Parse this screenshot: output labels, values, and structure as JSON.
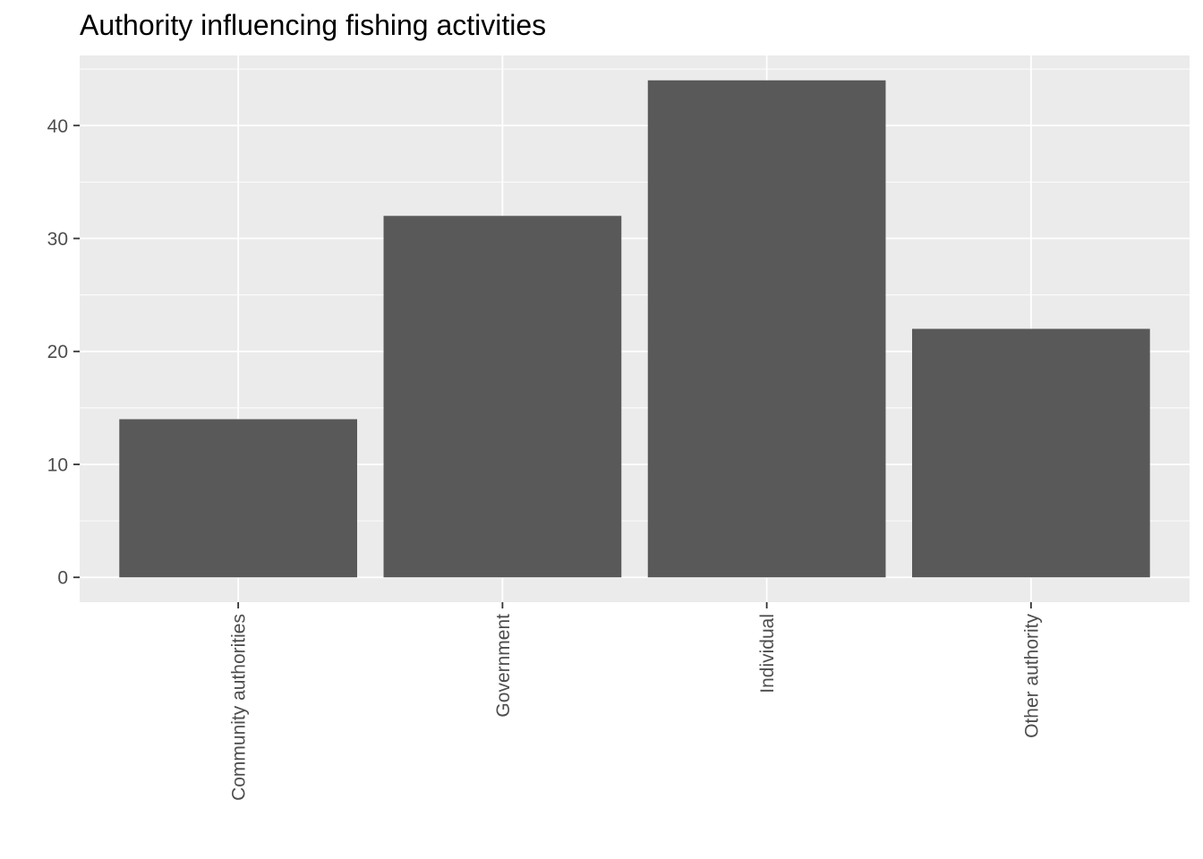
{
  "chart_data": {
    "type": "bar",
    "title": "Authority influencing fishing activities",
    "xlabel": "",
    "ylabel": "",
    "categories": [
      "Community authorities",
      "Government",
      "Individual",
      "Other authority"
    ],
    "values": [
      14,
      32,
      44,
      22
    ],
    "ylim": [
      -2.2,
      46.2
    ],
    "yticks": [
      0,
      10,
      20,
      30,
      40
    ],
    "ytick_labels": [
      "0",
      "10",
      "20",
      "30",
      "40"
    ],
    "grid": true,
    "legend": "none",
    "x_tick_label_rotation": -90
  },
  "colors": {
    "panel_background": "#ebebeb",
    "grid_major": "#ffffff",
    "grid_minor": "#ffffff",
    "bar_fill": "#595959",
    "tick_label": "#4d4d4d",
    "tick_mark": "#333333",
    "title": "#000000"
  }
}
